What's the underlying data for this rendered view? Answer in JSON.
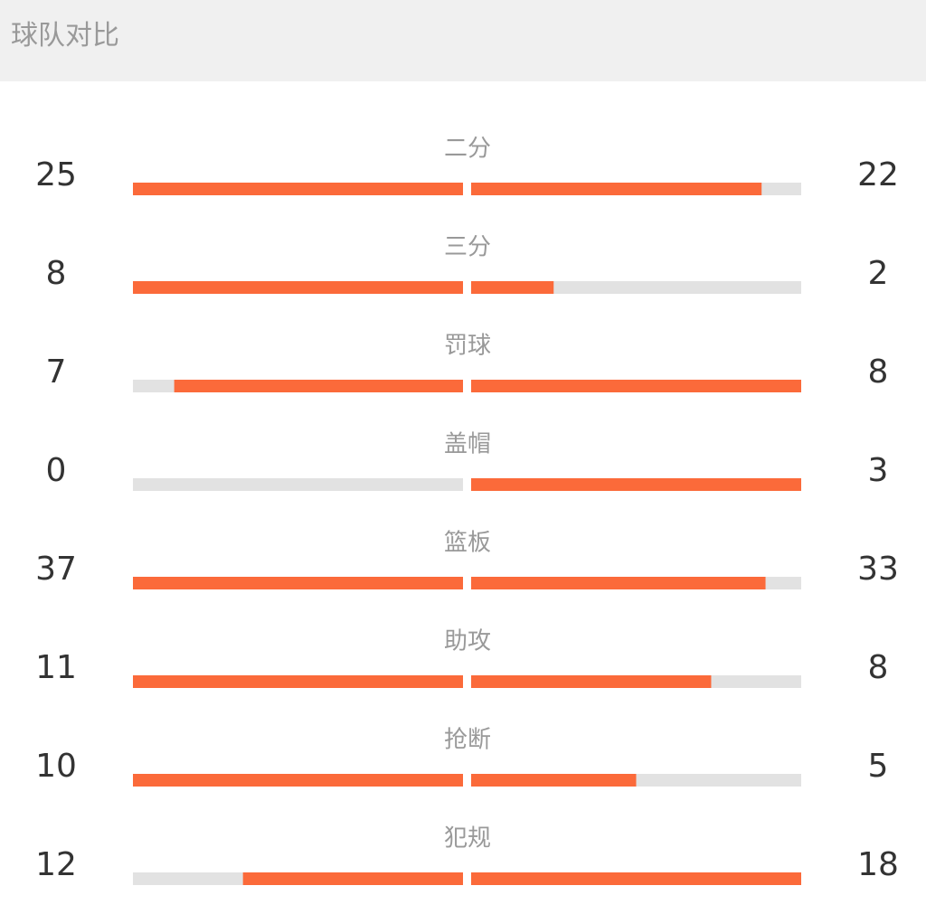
{
  "header": {
    "title": "球队对比"
  },
  "rows": [
    {
      "label": "二分",
      "left": 25,
      "right": 22
    },
    {
      "label": "三分",
      "left": 8,
      "right": 2
    },
    {
      "label": "罚球",
      "left": 7,
      "right": 8
    },
    {
      "label": "盖帽",
      "left": 0,
      "right": 3
    },
    {
      "label": "篮板",
      "left": 37,
      "right": 33
    },
    {
      "label": "助攻",
      "left": 11,
      "right": 8
    },
    {
      "label": "抢断",
      "left": 10,
      "right": 5
    },
    {
      "label": "犯规",
      "left": 12,
      "right": 18
    }
  ]
}
